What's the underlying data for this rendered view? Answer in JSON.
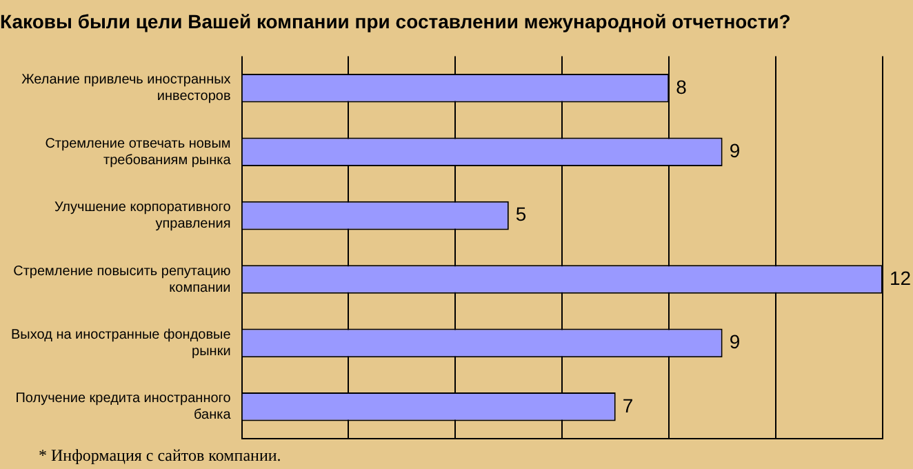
{
  "chart_data": {
    "type": "bar",
    "orientation": "horizontal",
    "title": "Каковы были цели Вашей компании при составлении межународной отчетности?",
    "categories": [
      "Желание привлечь иностранных инвесторов",
      "Стремление отвечать новым требованиям рынка",
      "Улучшение корпоративного управления",
      "Стремление повысить репутацию компании",
      "Выход на иностранные фондовые рынки",
      "Получение кредита иностранного банка"
    ],
    "values": [
      8,
      9,
      5,
      12,
      9,
      7
    ],
    "color": "#9999ff",
    "xlim": [
      0,
      12
    ],
    "xticks": [
      {
        "value": 0,
        "label": null
      },
      {
        "value": 2,
        "label": null
      },
      {
        "value": 4,
        "label": null
      },
      {
        "value": 6,
        "label": null
      },
      {
        "value": 8,
        "label": null
      },
      {
        "value": 10,
        "label": null
      },
      {
        "value": 12,
        "label": null
      }
    ],
    "tick_labels": "y",
    "grid": "x",
    "data_labels": true,
    "legend": false,
    "annotations": [
      "* Информация с сайтов компании."
    ]
  }
}
